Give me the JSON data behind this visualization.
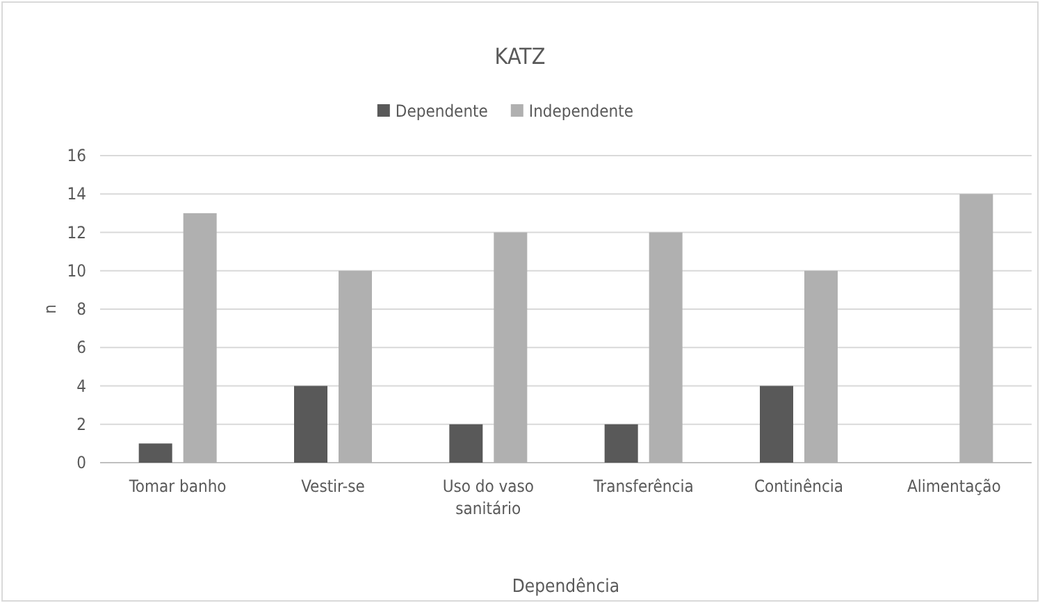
{
  "chart_data": {
    "type": "bar",
    "title": "KATZ",
    "xlabel": "Dependência",
    "ylabel": "n",
    "categories": [
      "Tomar banho",
      "Vestir-se",
      "Uso do vaso sanitário",
      "Transferência",
      "Continência",
      "Alimentação"
    ],
    "series": [
      {
        "name": "Dependente",
        "color": "#595959",
        "values": [
          1,
          4,
          2,
          2,
          4,
          0
        ]
      },
      {
        "name": "Independente",
        "color": "#b0b0b0",
        "values": [
          13,
          10,
          12,
          12,
          10,
          14
        ]
      }
    ],
    "ylim": [
      0,
      16
    ],
    "yticks": [
      0,
      2,
      4,
      6,
      8,
      10,
      12,
      14,
      16
    ],
    "grid": "y",
    "legend": "top"
  }
}
